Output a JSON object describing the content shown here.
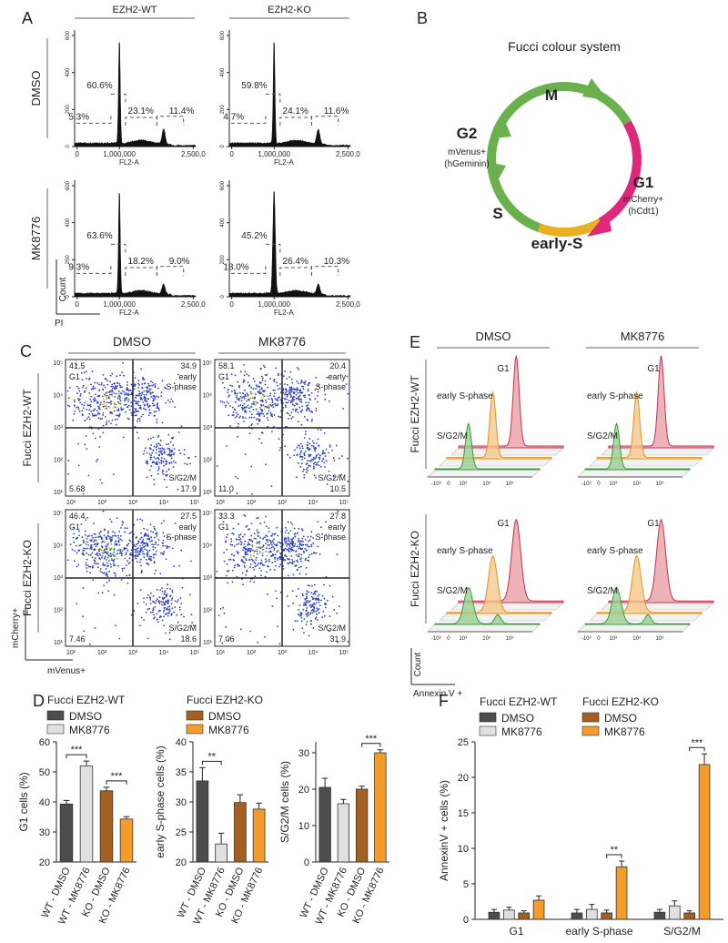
{
  "figure": {
    "A": {
      "label": "A",
      "columns": [
        "EZH2-WT",
        "EZH2-KO"
      ],
      "rows": [
        "DMSO",
        "MK8776"
      ],
      "y_ticks": [
        "0",
        "200",
        "400",
        "600"
      ],
      "x_ticks": [
        "0",
        "1,000,000",
        "2,500,0"
      ],
      "x_axis": "FL2-A",
      "axis_y": "Count",
      "axis_x": "PI",
      "plots": [
        {
          "gates": [
            "60.6%",
            "5.3%",
            "23.1%",
            "11.4%"
          ]
        },
        {
          "gates": [
            "59.8%",
            "4.7%",
            "24.1%",
            "11.6%"
          ]
        },
        {
          "gates": [
            "63.6%",
            "9.3%",
            "18.2%",
            "9.0%"
          ]
        },
        {
          "gates": [
            "45.2%",
            "18.0%",
            "26.4%",
            "10.3%"
          ]
        }
      ]
    },
    "B": {
      "label": "B",
      "title": "Fucci colour system",
      "m": "M",
      "g2": "G2",
      "g2_marker": "mVenus+",
      "g2_protein": "(hGeminin)",
      "g1": "G1",
      "g1_marker": "mCherry+",
      "g1_protein": "(hCdt1)",
      "s": "S",
      "early_s": "early-S"
    },
    "C": {
      "label": "C",
      "columns": [
        "DMSO",
        "MK8776"
      ],
      "rows": [
        "Fucci EZH2-WT",
        "Fucci EZH2-KO"
      ],
      "ticks": [
        "10¹",
        "10²",
        "10³",
        "10⁴",
        "10⁵"
      ],
      "axis_y": "mCherry+",
      "axis_x": "mVenus+",
      "quadrant_labels": {
        "g1": "G1",
        "early": "early",
        "s_phase": "S-phase",
        "sg2m": "S/G2/M"
      },
      "plots": [
        {
          "g1": "41.5",
          "early": "34.9",
          "neg": "5.68",
          "sg2m": "17.9"
        },
        {
          "g1": "58.1",
          "early": "20.4",
          "neg": "11.0",
          "sg2m": "10.5"
        },
        {
          "g1": "46.4",
          "early": "27.5",
          "neg": "7.46",
          "sg2m": "18.6"
        },
        {
          "g1": "33.3",
          "early": "27.8",
          "neg": "7.06",
          "sg2m": "31.9"
        }
      ]
    },
    "E": {
      "label": "E",
      "columns": [
        "DMSO",
        "MK8776"
      ],
      "rows": [
        "Fucci EZH2-WT",
        "Fucci EZH2-KO"
      ],
      "peaks": {
        "g1": "G1",
        "early": "early S-phase",
        "sg2m": "S/G2/M"
      },
      "ticks": [
        "-10³",
        "0",
        "10³",
        "10⁴",
        "10⁵"
      ],
      "axis_y": "Count",
      "axis_x": "Annexin V +"
    }
  },
  "chart_data": [
    {
      "type": "bar",
      "panel": "D",
      "ylabel": "G1 cells (%)",
      "legend_groups": [
        {
          "title": "Fucci EZH2-WT",
          "items": [
            {
              "name": "DMSO",
              "color": "#4d4d4d"
            },
            {
              "name": "MK8776",
              "color": "#e0e0e0"
            }
          ]
        },
        {
          "title": "Fucci EZH2-KO",
          "items": [
            {
              "name": "DMSO",
              "color": "#a4601f"
            },
            {
              "name": "MK8776",
              "color": "#f39c2b"
            }
          ]
        }
      ],
      "categories": [
        "WT - DMSO",
        "WT - MK8776",
        "KO - DMSO",
        "KO - MK8776"
      ],
      "values": [
        39.3,
        52,
        43.7,
        34.3
      ],
      "errors": [
        1.2,
        1.6,
        1.2,
        0.8
      ],
      "colors": [
        "#4d4d4d",
        "#e0e0e0",
        "#a4601f",
        "#f39c2b"
      ],
      "ylim": [
        20,
        60
      ],
      "yticks": [
        20,
        30,
        40,
        50,
        60
      ],
      "annotations": [
        {
          "text": "***",
          "from": "WT - DMSO",
          "to": "WT - MK8776"
        },
        {
          "text": "***",
          "from": "KO - DMSO",
          "to": "KO - MK8776"
        }
      ]
    },
    {
      "type": "bar",
      "ylabel": "early S-phase cells (%)",
      "categories": [
        "WT - DMSO",
        "WT - MK8776",
        "KO - DMSO",
        "KO - MK8776"
      ],
      "values": [
        33.5,
        23,
        29.9,
        28.8
      ],
      "errors": [
        2.2,
        1.8,
        1.3,
        1.0
      ],
      "colors": [
        "#4d4d4d",
        "#e0e0e0",
        "#a4601f",
        "#f39c2b"
      ],
      "ylim": [
        20,
        40
      ],
      "yticks": [
        20,
        25,
        30,
        35,
        40
      ],
      "annotations": [
        {
          "text": "**",
          "from": "WT - DMSO",
          "to": "WT - MK8776"
        }
      ]
    },
    {
      "type": "bar",
      "ylabel": "S/G2/M cells (%)",
      "categories": [
        "WT - DMSO",
        "WT - MK8776",
        "KO - DMSO",
        "KO - MK8776"
      ],
      "values": [
        20.5,
        16,
        20,
        30
      ],
      "errors": [
        2.5,
        1.2,
        0.8,
        0.8
      ],
      "colors": [
        "#4d4d4d",
        "#e0e0e0",
        "#a4601f",
        "#f39c2b"
      ],
      "ylim": [
        0,
        33
      ],
      "yticks": [
        0,
        10,
        20,
        30
      ],
      "annotations": [
        {
          "text": "***",
          "from": "KO - DMSO",
          "to": "KO - MK8776"
        }
      ]
    },
    {
      "type": "bar",
      "panel": "F",
      "ylabel": "AnnexinV + cells (%)",
      "categories": [
        "G1",
        "early S-phase",
        "S/G2/M"
      ],
      "groups": [
        {
          "title": "Fucci EZH2-WT",
          "series": [
            {
              "name": "DMSO",
              "color": "#4d4d4d",
              "values": [
                1.0,
                0.9,
                1.0
              ],
              "errors": [
                0.4,
                0.5,
                0.4
              ]
            },
            {
              "name": "MK8776",
              "color": "#e0e0e0",
              "values": [
                1.3,
                1.4,
                1.9
              ],
              "errors": [
                0.4,
                0.7,
                0.7
              ]
            }
          ]
        },
        {
          "title": "Fucci EZH2-KO",
          "series": [
            {
              "name": "DMSO",
              "color": "#a4601f",
              "values": [
                0.9,
                0.9,
                0.9
              ],
              "errors": [
                0.3,
                0.4,
                0.3
              ]
            },
            {
              "name": "MK8776",
              "color": "#f39c2b",
              "values": [
                2.7,
                7.4,
                21.8
              ],
              "errors": [
                0.6,
                0.8,
                1.5
              ]
            }
          ]
        }
      ],
      "ylim": [
        0,
        25
      ],
      "yticks": [
        0,
        5,
        10,
        15,
        20,
        25
      ],
      "annotations": [
        {
          "text": "**",
          "category": "early S-phase"
        },
        {
          "text": "***",
          "category": "S/G2/M"
        }
      ]
    }
  ]
}
